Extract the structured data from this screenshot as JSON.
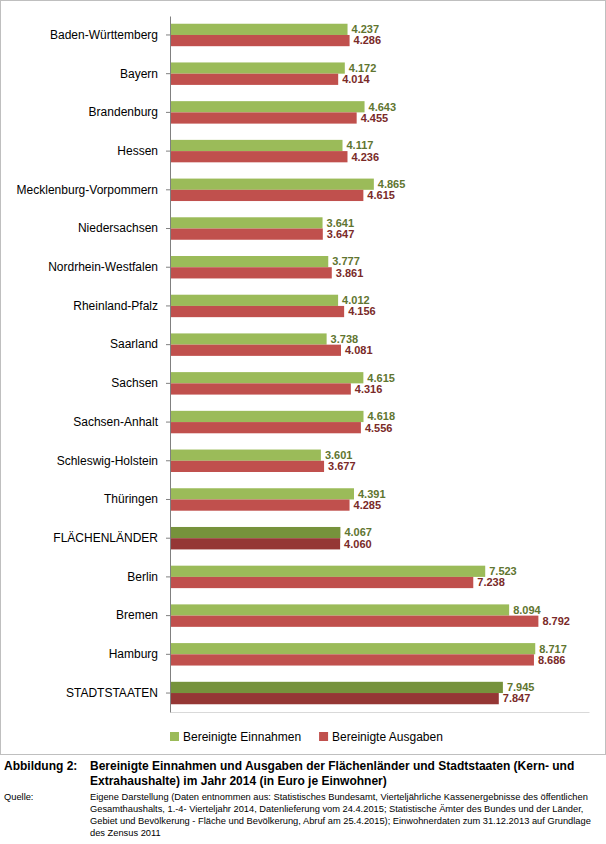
{
  "chart_data": {
    "type": "bar",
    "orientation": "horizontal",
    "title": "Bereinigte Einnahmen und Ausgaben der Flächenländer und Stadtstaaten (Kern- und Extrahaushalte) im Jahr 2014 (in Euro je Einwohner)",
    "figure_label": "Abbildung 2:",
    "source_label": "Quelle:",
    "source": "Eigene Darstellung (Daten entnommen aus: Statistisches Bundesamt, Vierteljährliche Kassenergebnisse des öffentlichen Gesamthaushalts, 1.-4- Vierteljahr 2014, Datenlieferung vom 24.4.2015; Statistische Ämter des Bundes und der Länder, Gebiet und Bevölkerung - Fläche und Bevölkerung, Abruf am 25.4.2015); Einwohnerdaten zum 31.12.2013 auf Grundlage des Zensus 2011",
    "categories": [
      "Baden-Württemberg",
      "Bayern",
      "Brandenburg",
      "Hessen",
      "Mecklenburg-Vorpommern",
      "Niedersachsen",
      "Nordrhein-Westfalen",
      "Rheinland-Pfalz",
      "Saarland",
      "Sachsen",
      "Sachsen-Anhalt",
      "Schleswig-Holstein",
      "Thüringen",
      "FLÄCHENLÄNDER",
      "Berlin",
      "Bremen",
      "Hamburg",
      "STADTSTAATEN"
    ],
    "series": [
      {
        "name": "Bereinigte Einnahmen",
        "color": "#9bbb59",
        "colors": [
          "#9bbb59",
          "#9bbb59",
          "#9bbb59",
          "#9bbb59",
          "#9bbb59",
          "#9bbb59",
          "#9bbb59",
          "#9bbb59",
          "#9bbb59",
          "#9bbb59",
          "#9bbb59",
          "#9bbb59",
          "#9bbb59",
          "#76923c",
          "#9bbb59",
          "#9bbb59",
          "#9bbb59",
          "#76923c"
        ],
        "values": [
          4237,
          4172,
          4643,
          4117,
          4865,
          3641,
          3777,
          4012,
          3738,
          4615,
          4618,
          3601,
          4391,
          4067,
          7523,
          8094,
          8717,
          7945
        ],
        "value_labels": [
          "4.237",
          "4.172",
          "4.643",
          "4.117",
          "4.865",
          "3.641",
          "3.777",
          "4.012",
          "3.738",
          "4.615",
          "4.618",
          "3.601",
          "4.391",
          "4.067",
          "7.523",
          "8.094",
          "8.717",
          "7.945"
        ]
      },
      {
        "name": "Bereinigte Ausgaben",
        "color": "#c0504d",
        "colors": [
          "#c0504d",
          "#c0504d",
          "#c0504d",
          "#c0504d",
          "#c0504d",
          "#c0504d",
          "#c0504d",
          "#c0504d",
          "#c0504d",
          "#c0504d",
          "#c0504d",
          "#c0504d",
          "#c0504d",
          "#953735",
          "#c0504d",
          "#c0504d",
          "#c0504d",
          "#953735"
        ],
        "values": [
          4286,
          4014,
          4455,
          4236,
          4615,
          3647,
          3861,
          4156,
          4081,
          4316,
          4556,
          3677,
          4285,
          4060,
          7238,
          8792,
          8686,
          7847
        ],
        "value_labels": [
          "4.286",
          "4.014",
          "4.455",
          "4.236",
          "4.615",
          "3.647",
          "3.861",
          "4.156",
          "4.081",
          "4.316",
          "4.556",
          "3.677",
          "4.285",
          "4.060",
          "7.238",
          "8.792",
          "8.686",
          "7.847"
        ]
      }
    ],
    "xlim": [
      0,
      10000
    ],
    "data_labels": true,
    "tick_labels": "y",
    "grid": false,
    "legend": "bottom"
  }
}
